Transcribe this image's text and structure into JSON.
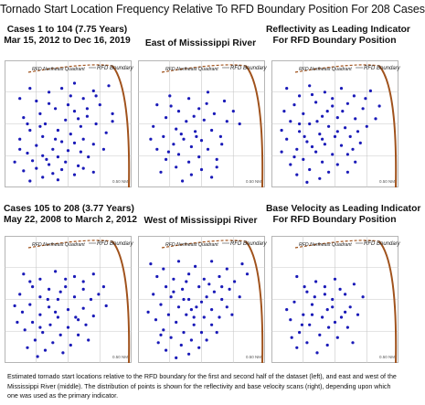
{
  "title": "Tornado Start Location Frequency Relative To RFD Boundary Position For 208 Cases",
  "caption": "Estimated tornado start locations relative to the RFD boundary for the first and second half of the dataset (left), and east and west of the Mississippi River (middle).  The distribution of points is shown for the reflectivity and base velocity scans (right), depending upon which one was used as the primary indicator.",
  "colors": {
    "points": "#1a1ab8",
    "boundary": "#a0521c",
    "grid": "#c8c8c8"
  },
  "chart_data": [
    {
      "type": "scatter",
      "heading_lines": [
        "Cases 1 to 104 (7.75 Years)",
        "Mar 15, 2012 to Dec 16, 2019"
      ],
      "quadrant_label": "RFD Northeast Quadrant",
      "boundary_label": "RFD Boundary",
      "scale_label": "0.50 NM",
      "points": [
        [
          0.12,
          0.3
        ],
        [
          0.2,
          0.22
        ],
        [
          0.35,
          0.25
        ],
        [
          0.55,
          0.18
        ],
        [
          0.7,
          0.24
        ],
        [
          0.82,
          0.2
        ],
        [
          0.62,
          0.3
        ],
        [
          0.75,
          0.35
        ],
        [
          0.4,
          0.38
        ],
        [
          0.28,
          0.42
        ],
        [
          0.15,
          0.45
        ],
        [
          0.55,
          0.4
        ],
        [
          0.65,
          0.44
        ],
        [
          0.85,
          0.42
        ],
        [
          0.48,
          0.47
        ],
        [
          0.32,
          0.5
        ],
        [
          0.6,
          0.52
        ],
        [
          0.72,
          0.5
        ],
        [
          0.2,
          0.55
        ],
        [
          0.42,
          0.55
        ],
        [
          0.52,
          0.58
        ],
        [
          0.8,
          0.57
        ],
        [
          0.3,
          0.6
        ],
        [
          0.62,
          0.62
        ],
        [
          0.12,
          0.62
        ],
        [
          0.45,
          0.64
        ],
        [
          0.55,
          0.65
        ],
        [
          0.7,
          0.66
        ],
        [
          0.25,
          0.67
        ],
        [
          0.38,
          0.7
        ],
        [
          0.5,
          0.71
        ],
        [
          0.6,
          0.72
        ],
        [
          0.18,
          0.73
        ],
        [
          0.3,
          0.75
        ],
        [
          0.42,
          0.76
        ],
        [
          0.66,
          0.76
        ],
        [
          0.22,
          0.79
        ],
        [
          0.48,
          0.8
        ],
        [
          0.35,
          0.82
        ],
        [
          0.58,
          0.83
        ],
        [
          0.25,
          0.85
        ],
        [
          0.45,
          0.86
        ],
        [
          0.15,
          0.87
        ],
        [
          0.38,
          0.89
        ],
        [
          0.55,
          0.9
        ],
        [
          0.7,
          0.88
        ],
        [
          0.3,
          0.92
        ],
        [
          0.2,
          0.95
        ],
        [
          0.42,
          0.94
        ],
        [
          0.08,
          0.8
        ],
        [
          0.58,
          0.46
        ],
        [
          0.35,
          0.34
        ],
        [
          0.25,
          0.32
        ],
        [
          0.78,
          0.7
        ],
        [
          0.12,
          0.7
        ],
        [
          0.5,
          0.35
        ],
        [
          0.85,
          0.48
        ],
        [
          0.65,
          0.38
        ],
        [
          0.4,
          0.62
        ],
        [
          0.28,
          0.52
        ],
        [
          0.52,
          0.28
        ],
        [
          0.45,
          0.22
        ],
        [
          0.72,
          0.28
        ],
        [
          0.33,
          0.78
        ],
        [
          0.62,
          0.85
        ],
        [
          0.18,
          0.5
        ]
      ]
    },
    {
      "type": "scatter",
      "heading_lines": [
        "East of Mississippi River"
      ],
      "quadrant_label": "RFD Northeast Quadrant",
      "boundary_label": "RFD Boundary",
      "scale_label": "0.50 NM",
      "points": [
        [
          0.15,
          0.35
        ],
        [
          0.25,
          0.28
        ],
        [
          0.4,
          0.3
        ],
        [
          0.55,
          0.25
        ],
        [
          0.68,
          0.32
        ],
        [
          0.32,
          0.4
        ],
        [
          0.48,
          0.38
        ],
        [
          0.6,
          0.42
        ],
        [
          0.22,
          0.45
        ],
        [
          0.38,
          0.48
        ],
        [
          0.52,
          0.47
        ],
        [
          0.7,
          0.48
        ],
        [
          0.12,
          0.52
        ],
        [
          0.3,
          0.54
        ],
        [
          0.45,
          0.56
        ],
        [
          0.58,
          0.55
        ],
        [
          0.2,
          0.6
        ],
        [
          0.36,
          0.62
        ],
        [
          0.5,
          0.63
        ],
        [
          0.65,
          0.6
        ],
        [
          0.28,
          0.66
        ],
        [
          0.42,
          0.68
        ],
        [
          0.15,
          0.7
        ],
        [
          0.55,
          0.7
        ],
        [
          0.32,
          0.74
        ],
        [
          0.48,
          0.76
        ],
        [
          0.22,
          0.78
        ],
        [
          0.4,
          0.8
        ],
        [
          0.62,
          0.78
        ],
        [
          0.3,
          0.84
        ],
        [
          0.5,
          0.86
        ],
        [
          0.18,
          0.88
        ],
        [
          0.42,
          0.9
        ],
        [
          0.35,
          0.95
        ],
        [
          0.58,
          0.92
        ],
        [
          0.8,
          0.5
        ],
        [
          0.75,
          0.4
        ],
        [
          0.26,
          0.36
        ],
        [
          0.44,
          0.44
        ],
        [
          0.1,
          0.62
        ],
        [
          0.66,
          0.66
        ],
        [
          0.54,
          0.34
        ],
        [
          0.34,
          0.58
        ],
        [
          0.24,
          0.72
        ],
        [
          0.46,
          0.6
        ],
        [
          0.62,
          0.84
        ]
      ]
    },
    {
      "type": "scatter",
      "heading_lines": [
        "Reflectivity as Leading Indicator",
        "For RFD Boundary Position"
      ],
      "quadrant_label": "RFD Northeast Quadrant",
      "boundary_label": "RFD Boundary",
      "scale_label": "0.50 NM",
      "points": [
        [
          0.12,
          0.22
        ],
        [
          0.22,
          0.28
        ],
        [
          0.3,
          0.2
        ],
        [
          0.42,
          0.25
        ],
        [
          0.55,
          0.22
        ],
        [
          0.65,
          0.28
        ],
        [
          0.78,
          0.24
        ],
        [
          0.18,
          0.35
        ],
        [
          0.35,
          0.33
        ],
        [
          0.48,
          0.36
        ],
        [
          0.6,
          0.34
        ],
        [
          0.72,
          0.38
        ],
        [
          0.85,
          0.36
        ],
        [
          0.25,
          0.42
        ],
        [
          0.4,
          0.44
        ],
        [
          0.52,
          0.45
        ],
        [
          0.66,
          0.46
        ],
        [
          0.15,
          0.48
        ],
        [
          0.3,
          0.5
        ],
        [
          0.45,
          0.52
        ],
        [
          0.58,
          0.53
        ],
        [
          0.75,
          0.52
        ],
        [
          0.22,
          0.56
        ],
        [
          0.38,
          0.58
        ],
        [
          0.5,
          0.6
        ],
        [
          0.62,
          0.6
        ],
        [
          0.12,
          0.62
        ],
        [
          0.28,
          0.64
        ],
        [
          0.42,
          0.66
        ],
        [
          0.55,
          0.67
        ],
        [
          0.7,
          0.65
        ],
        [
          0.2,
          0.7
        ],
        [
          0.35,
          0.72
        ],
        [
          0.48,
          0.74
        ],
        [
          0.6,
          0.74
        ],
        [
          0.25,
          0.78
        ],
        [
          0.4,
          0.8
        ],
        [
          0.15,
          0.82
        ],
        [
          0.52,
          0.82
        ],
        [
          0.3,
          0.86
        ],
        [
          0.45,
          0.88
        ],
        [
          0.2,
          0.9
        ],
        [
          0.38,
          0.93
        ],
        [
          0.6,
          0.88
        ],
        [
          0.08,
          0.72
        ],
        [
          0.1,
          0.4
        ],
        [
          0.32,
          0.27
        ],
        [
          0.68,
          0.56
        ],
        [
          0.82,
          0.46
        ],
        [
          0.44,
          0.4
        ],
        [
          0.26,
          0.6
        ],
        [
          0.56,
          0.4
        ],
        [
          0.36,
          0.48
        ],
        [
          0.64,
          0.7
        ],
        [
          0.18,
          0.76
        ],
        [
          0.48,
          0.3
        ],
        [
          0.74,
          0.3
        ],
        [
          0.28,
          0.96
        ],
        [
          0.52,
          0.56
        ],
        [
          0.08,
          0.55
        ],
        [
          0.4,
          0.62
        ],
        [
          0.66,
          0.8
        ],
        [
          0.32,
          0.68
        ],
        [
          0.22,
          0.5
        ]
      ]
    },
    {
      "type": "scatter",
      "heading_lines": [
        "Cases 105 to 208 (3.77 Years)",
        "May 22, 2008 to March 2, 2012"
      ],
      "quadrant_label": "RFD Northeast Quadrant",
      "boundary_label": "RFD Boundary",
      "scale_label": "0.50 NM",
      "points": [
        [
          0.15,
          0.3
        ],
        [
          0.28,
          0.34
        ],
        [
          0.4,
          0.28
        ],
        [
          0.55,
          0.32
        ],
        [
          0.7,
          0.3
        ],
        [
          0.22,
          0.4
        ],
        [
          0.35,
          0.42
        ],
        [
          0.48,
          0.4
        ],
        [
          0.62,
          0.42
        ],
        [
          0.78,
          0.4
        ],
        [
          0.12,
          0.46
        ],
        [
          0.28,
          0.48
        ],
        [
          0.42,
          0.5
        ],
        [
          0.55,
          0.48
        ],
        [
          0.68,
          0.5
        ],
        [
          0.2,
          0.54
        ],
        [
          0.35,
          0.56
        ],
        [
          0.5,
          0.58
        ],
        [
          0.62,
          0.57
        ],
        [
          0.8,
          0.55
        ],
        [
          0.14,
          0.6
        ],
        [
          0.28,
          0.62
        ],
        [
          0.42,
          0.64
        ],
        [
          0.56,
          0.64
        ],
        [
          0.7,
          0.63
        ],
        [
          0.22,
          0.68
        ],
        [
          0.36,
          0.7
        ],
        [
          0.5,
          0.72
        ],
        [
          0.64,
          0.7
        ],
        [
          0.16,
          0.74
        ],
        [
          0.3,
          0.76
        ],
        [
          0.44,
          0.78
        ],
        [
          0.58,
          0.78
        ],
        [
          0.24,
          0.82
        ],
        [
          0.38,
          0.84
        ],
        [
          0.52,
          0.86
        ],
        [
          0.18,
          0.88
        ],
        [
          0.32,
          0.9
        ],
        [
          0.46,
          0.92
        ],
        [
          0.26,
          0.95
        ],
        [
          0.08,
          0.55
        ],
        [
          0.48,
          0.34
        ],
        [
          0.62,
          0.36
        ],
        [
          0.34,
          0.5
        ],
        [
          0.74,
          0.46
        ],
        [
          0.1,
          0.68
        ],
        [
          0.4,
          0.6
        ],
        [
          0.58,
          0.66
        ],
        [
          0.28,
          0.72
        ],
        [
          0.66,
          0.82
        ],
        [
          0.2,
          0.36
        ],
        [
          0.44,
          0.44
        ]
      ]
    },
    {
      "type": "scatter",
      "heading_lines": [
        "West of Mississippi River"
      ],
      "quadrant_label": "RFD Northeast Quadrant",
      "boundary_label": "RFD Boundary",
      "scale_label": "0.50 NM",
      "points": [
        [
          0.1,
          0.22
        ],
        [
          0.2,
          0.26
        ],
        [
          0.32,
          0.2
        ],
        [
          0.45,
          0.24
        ],
        [
          0.58,
          0.2
        ],
        [
          0.7,
          0.26
        ],
        [
          0.82,
          0.22
        ],
        [
          0.15,
          0.32
        ],
        [
          0.28,
          0.34
        ],
        [
          0.4,
          0.3
        ],
        [
          0.52,
          0.34
        ],
        [
          0.64,
          0.32
        ],
        [
          0.76,
          0.36
        ],
        [
          0.22,
          0.4
        ],
        [
          0.35,
          0.42
        ],
        [
          0.48,
          0.4
        ],
        [
          0.6,
          0.44
        ],
        [
          0.72,
          0.42
        ],
        [
          0.12,
          0.46
        ],
        [
          0.26,
          0.48
        ],
        [
          0.4,
          0.5
        ],
        [
          0.54,
          0.48
        ],
        [
          0.66,
          0.5
        ],
        [
          0.8,
          0.48
        ],
        [
          0.18,
          0.54
        ],
        [
          0.32,
          0.56
        ],
        [
          0.46,
          0.56
        ],
        [
          0.58,
          0.58
        ],
        [
          0.7,
          0.56
        ],
        [
          0.24,
          0.62
        ],
        [
          0.38,
          0.62
        ],
        [
          0.52,
          0.64
        ],
        [
          0.64,
          0.64
        ],
        [
          0.14,
          0.66
        ],
        [
          0.3,
          0.68
        ],
        [
          0.44,
          0.7
        ],
        [
          0.58,
          0.7
        ],
        [
          0.2,
          0.74
        ],
        [
          0.36,
          0.76
        ],
        [
          0.5,
          0.76
        ],
        [
          0.26,
          0.8
        ],
        [
          0.42,
          0.82
        ],
        [
          0.16,
          0.84
        ],
        [
          0.34,
          0.86
        ],
        [
          0.48,
          0.88
        ],
        [
          0.22,
          0.9
        ],
        [
          0.4,
          0.93
        ],
        [
          0.3,
          0.96
        ],
        [
          0.08,
          0.6
        ],
        [
          0.86,
          0.3
        ],
        [
          0.74,
          0.62
        ],
        [
          0.56,
          0.38
        ],
        [
          0.38,
          0.36
        ],
        [
          0.62,
          0.76
        ],
        [
          0.28,
          0.44
        ],
        [
          0.66,
          0.4
        ],
        [
          0.5,
          0.52
        ],
        [
          0.42,
          0.58
        ],
        [
          0.18,
          0.78
        ],
        [
          0.54,
          0.82
        ],
        [
          0.44,
          0.64
        ],
        [
          0.36,
          0.5
        ]
      ]
    },
    {
      "type": "scatter",
      "heading_lines": [
        "Base Velocity as Leading Indicator",
        "For RFD Boundary Position"
      ],
      "quadrant_label": "RFD Northeast Quadrant",
      "boundary_label": "RFD Boundary",
      "scale_label": "0.50 NM",
      "points": [
        [
          0.2,
          0.32
        ],
        [
          0.35,
          0.36
        ],
        [
          0.5,
          0.34
        ],
        [
          0.65,
          0.38
        ],
        [
          0.28,
          0.44
        ],
        [
          0.42,
          0.46
        ],
        [
          0.58,
          0.46
        ],
        [
          0.72,
          0.48
        ],
        [
          0.18,
          0.52
        ],
        [
          0.32,
          0.54
        ],
        [
          0.48,
          0.56
        ],
        [
          0.62,
          0.56
        ],
        [
          0.25,
          0.62
        ],
        [
          0.4,
          0.64
        ],
        [
          0.55,
          0.64
        ],
        [
          0.15,
          0.66
        ],
        [
          0.3,
          0.7
        ],
        [
          0.45,
          0.72
        ],
        [
          0.6,
          0.72
        ],
        [
          0.22,
          0.76
        ],
        [
          0.38,
          0.78
        ],
        [
          0.52,
          0.8
        ],
        [
          0.28,
          0.84
        ],
        [
          0.44,
          0.86
        ],
        [
          0.2,
          0.88
        ],
        [
          0.36,
          0.92
        ],
        [
          0.12,
          0.58
        ],
        [
          0.68,
          0.62
        ],
        [
          0.54,
          0.42
        ],
        [
          0.44,
          0.58
        ],
        [
          0.34,
          0.48
        ],
        [
          0.5,
          0.68
        ],
        [
          0.26,
          0.4
        ],
        [
          0.64,
          0.84
        ],
        [
          0.16,
          0.8
        ],
        [
          0.42,
          0.4
        ],
        [
          0.58,
          0.6
        ],
        [
          0.32,
          0.62
        ],
        [
          0.48,
          0.5
        ],
        [
          0.24,
          0.7
        ]
      ]
    }
  ]
}
